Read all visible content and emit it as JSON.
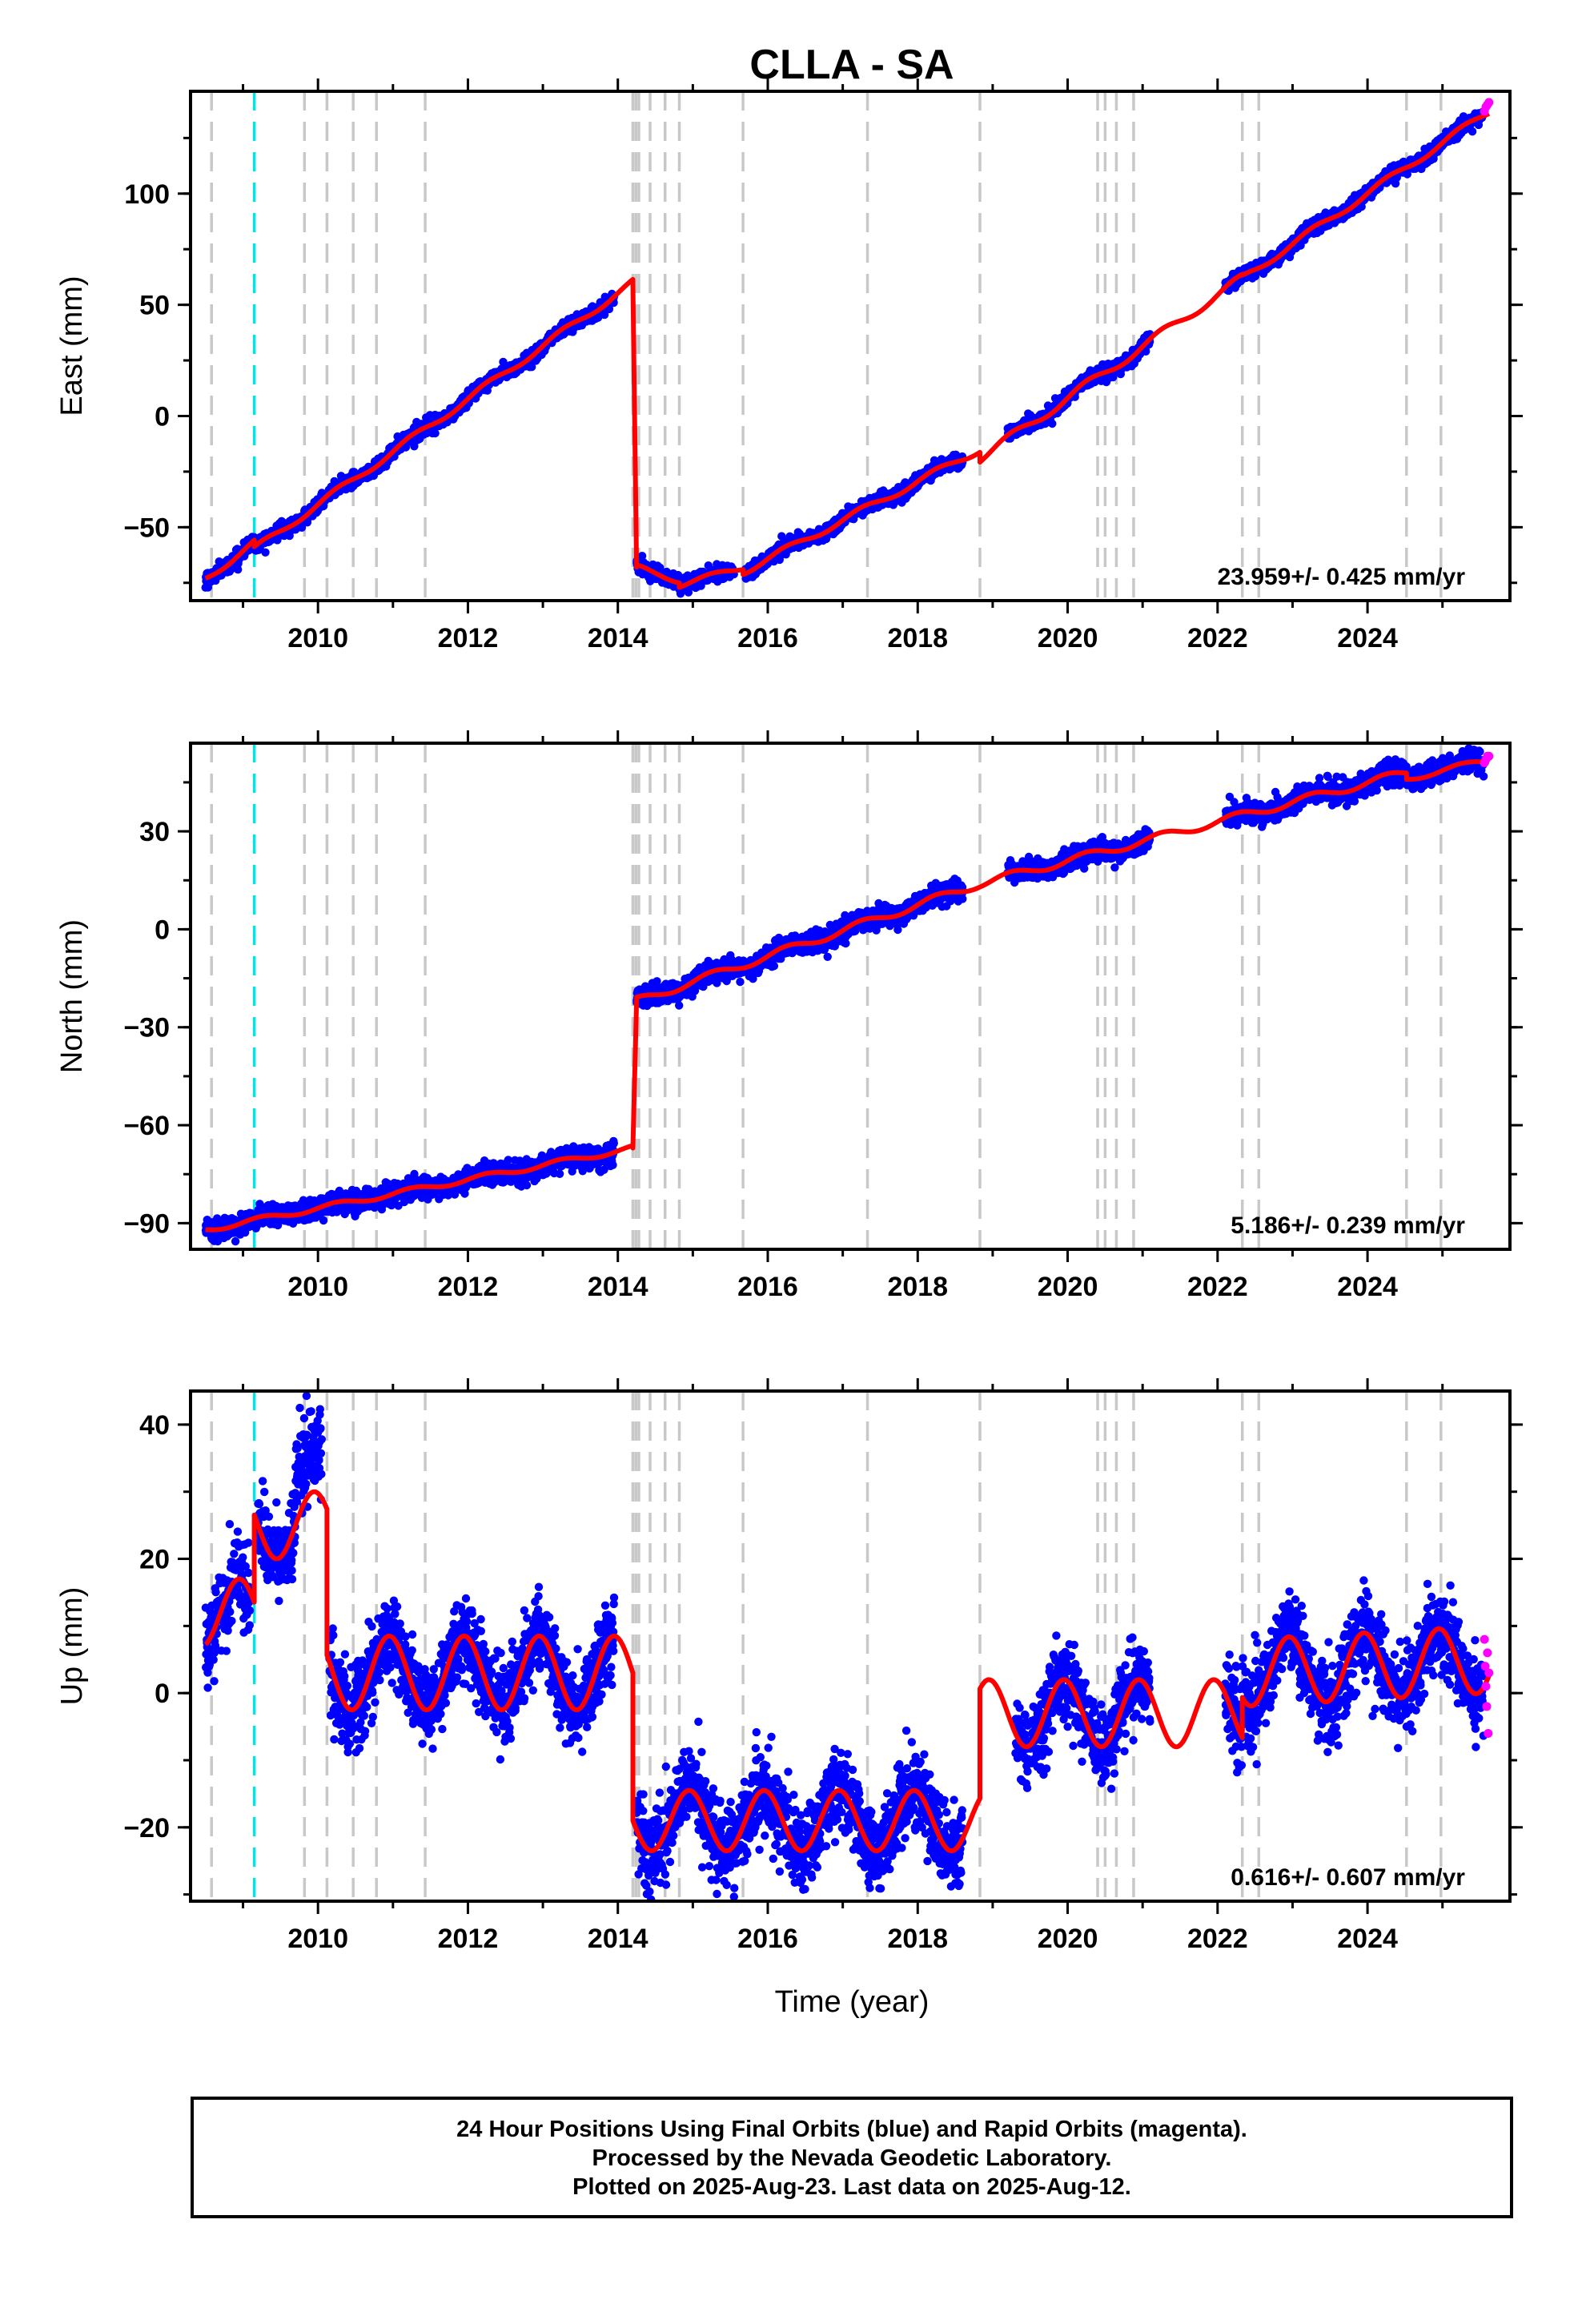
{
  "title": "CLLA - SA",
  "xlabel": "Time (year)",
  "caption": [
    "24 Hour Positions Using Final Orbits (blue) and Rapid Orbits (magenta).",
    "Processed by the Nevada Geodetic Laboratory.",
    "Plotted on 2025-Aug-23. Last data on 2025-Aug-12."
  ],
  "colors": {
    "final_orbits": "#0000ff",
    "rapid_orbits": "#ff00ff",
    "model": "#ff0000",
    "equipment_change": "#c8c8c8",
    "earthquake": "#00e5e5"
  },
  "chart_data": [
    {
      "type": "scatter",
      "panel": "east",
      "ylabel": "East (mm)",
      "xlim": [
        2008.3,
        2025.9
      ],
      "ylim": [
        -83,
        146
      ],
      "xticks": [
        2010,
        2012,
        2014,
        2016,
        2018,
        2020,
        2022,
        2024
      ],
      "yticks": [
        -50,
        0,
        50,
        100
      ],
      "rate_label": "23.959+/- 0.425 mm/yr",
      "grey_lines": [
        2008.58,
        2009.82,
        2010.12,
        2010.47,
        2010.78,
        2011.43,
        2014.2,
        2014.24,
        2014.28,
        2014.43,
        2014.63,
        2014.82,
        2015.67,
        2017.33,
        2018.83,
        2020.4,
        2020.5,
        2020.65,
        2020.88,
        2022.33,
        2022.55,
        2024.52,
        2024.98
      ],
      "cyan_lines": [
        2009.15
      ],
      "series": [
        {
          "name": "model",
          "segments": [
            {
              "x": [
                2008.5,
                2009.15
              ],
              "y": [
                -73,
                -57
              ],
              "seasonal_amp": 1.5
            },
            {
              "x": [
                2009.15,
                2014.2
              ],
              "y": [
                -60,
                60
              ],
              "seasonal_amp": 1.5
            },
            {
              "x": [
                2014.2,
                2014.25
              ],
              "y": [
                60,
                -68
              ]
            },
            {
              "x": [
                2014.25,
                2014.82
              ],
              "y": [
                -68,
                -74
              ],
              "seasonal_amp": 1.2
            },
            {
              "x": [
                2014.82,
                2015.67
              ],
              "y": [
                -76,
                -68
              ],
              "seasonal_amp": 1.2
            },
            {
              "x": [
                2015.67,
                2018.83
              ],
              "y": [
                -70,
                -15
              ],
              "seasonal_amp": 1.5
            },
            {
              "x": [
                2018.83,
                2022.33
              ],
              "y": [
                -19,
                62
              ],
              "seasonal_amp": 2.0
            },
            {
              "x": [
                2022.33,
                2025.62
              ],
              "y": [
                62,
                137
              ],
              "seasonal_amp": 1.5
            }
          ]
        },
        {
          "name": "final_orbits",
          "ranges": [
            {
              "x": [
                2008.5,
                2013.95
              ],
              "sd": 1.5
            },
            {
              "x": [
                2014.25,
                2015.55
              ],
              "sd": 1.5
            },
            {
              "x": [
                2015.7,
                2018.6
              ],
              "sd": 1.5
            },
            {
              "x": [
                2019.2,
                2021.1
              ],
              "sd": 1.5
            },
            {
              "x": [
                2022.1,
                2025.55
              ],
              "sd": 1.5
            }
          ]
        },
        {
          "name": "rapid_orbits",
          "x": [
            2025.56,
            2025.58,
            2025.6,
            2025.62
          ],
          "y": [
            137,
            139,
            140,
            141
          ]
        }
      ]
    },
    {
      "type": "scatter",
      "panel": "north",
      "ylabel": "North (mm)",
      "xlim": [
        2008.3,
        2025.9
      ],
      "ylim": [
        -98,
        57
      ],
      "xticks": [
        2010,
        2012,
        2014,
        2016,
        2018,
        2020,
        2022,
        2024
      ],
      "yticks": [
        -90,
        -60,
        -30,
        0,
        30
      ],
      "rate_label": "5.186+/- 0.239 mm/yr",
      "grey_lines": [
        2008.58,
        2009.82,
        2010.12,
        2010.47,
        2010.78,
        2011.43,
        2014.2,
        2014.24,
        2014.28,
        2014.43,
        2014.63,
        2014.82,
        2015.67,
        2017.33,
        2018.83,
        2020.4,
        2020.5,
        2020.65,
        2020.88,
        2022.33,
        2022.55,
        2024.52,
        2024.98
      ],
      "cyan_lines": [
        2009.15
      ],
      "series": [
        {
          "name": "model",
          "segments": [
            {
              "x": [
                2008.5,
                2014.2
              ],
              "y": [
                -92,
                -67
              ],
              "seasonal_amp": 0.8
            },
            {
              "x": [
                2014.2,
                2014.25
              ],
              "y": [
                -67,
                -22
              ]
            },
            {
              "x": [
                2014.25,
                2018.83
              ],
              "y": [
                -22,
                14
              ],
              "seasonal_amp": 1.2
            },
            {
              "x": [
                2018.83,
                2024.52
              ],
              "y": [
                14,
                48
              ],
              "seasonal_amp": 1.2
            },
            {
              "x": [
                2024.52,
                2025.62
              ],
              "y": [
                46,
                52
              ],
              "seasonal_amp": 0.8
            }
          ]
        },
        {
          "name": "final_orbits",
          "ranges": [
            {
              "x": [
                2008.5,
                2013.95
              ],
              "sd": 1.5
            },
            {
              "x": [
                2014.25,
                2018.6
              ],
              "sd": 1.5
            },
            {
              "x": [
                2019.2,
                2021.1
              ],
              "sd": 1.5
            },
            {
              "x": [
                2022.1,
                2025.55
              ],
              "sd": 1.5
            }
          ]
        },
        {
          "name": "rapid_orbits",
          "x": [
            2025.56,
            2025.58,
            2025.6,
            2025.62
          ],
          "y": [
            51,
            52,
            53,
            53
          ]
        }
      ]
    },
    {
      "type": "scatter",
      "panel": "up",
      "ylabel": "Up (mm)",
      "xlim": [
        2008.3,
        2025.9
      ],
      "ylim": [
        -31,
        45
      ],
      "xticks": [
        2010,
        2012,
        2014,
        2016,
        2018,
        2020,
        2022,
        2024
      ],
      "yticks": [
        -20,
        0,
        20,
        40
      ],
      "rate_label": "0.616+/- 0.607 mm/yr",
      "grey_lines": [
        2008.58,
        2009.82,
        2010.12,
        2010.47,
        2010.78,
        2011.43,
        2014.2,
        2014.24,
        2014.28,
        2014.43,
        2014.63,
        2014.82,
        2015.67,
        2017.33,
        2018.83,
        2020.4,
        2020.5,
        2020.65,
        2020.88,
        2022.33,
        2022.55,
        2024.52,
        2024.98
      ],
      "cyan_lines": [
        2009.15
      ],
      "series": [
        {
          "name": "model",
          "segments": [
            {
              "x": [
                2008.5,
                2009.15
              ],
              "y": [
                12,
                12
              ],
              "seasonal_amp": 5,
              "seasonal_phase": 0.3
            },
            {
              "x": [
                2009.15,
                2010.12
              ],
              "y": [
                25,
                25
              ],
              "seasonal_amp": 5,
              "seasonal_phase": 0.3
            },
            {
              "x": [
                2010.12,
                2014.2
              ],
              "y": [
                3,
                3
              ],
              "seasonal_amp": 5.5,
              "seasonal_phase": 0.3
            },
            {
              "x": [
                2014.2,
                2018.83
              ],
              "y": [
                -19,
                -19
              ],
              "seasonal_amp": 4.5,
              "seasonal_phase": 0.3
            },
            {
              "x": [
                2018.83,
                2022.33
              ],
              "y": [
                -3,
                -3
              ],
              "seasonal_amp": 5,
              "seasonal_phase": 0.3
            },
            {
              "x": [
                2022.33,
                2025.62
              ],
              "y": [
                3,
                5
              ],
              "seasonal_amp": 5,
              "seasonal_phase": 0.3
            }
          ]
        },
        {
          "name": "final_orbits",
          "ranges": [
            {
              "x": [
                2008.5,
                2009.1
              ],
              "sd": 3
            },
            {
              "x": [
                2009.18,
                2010.05
              ],
              "sd": 3
            },
            {
              "x": [
                2010.15,
                2013.95
              ],
              "sd": 3
            },
            {
              "x": [
                2014.25,
                2018.6
              ],
              "sd": 3
            },
            {
              "x": [
                2019.3,
                2021.1
              ],
              "sd": 3
            },
            {
              "x": [
                2022.1,
                2025.55
              ],
              "sd": 3
            }
          ]
        },
        {
          "name": "rapid_orbits",
          "x": [
            2025.56,
            2025.57,
            2025.58,
            2025.59,
            2025.6,
            2025.61,
            2025.62
          ],
          "y": [
            8,
            4,
            1,
            -2,
            6,
            -6,
            3
          ]
        }
      ]
    }
  ]
}
